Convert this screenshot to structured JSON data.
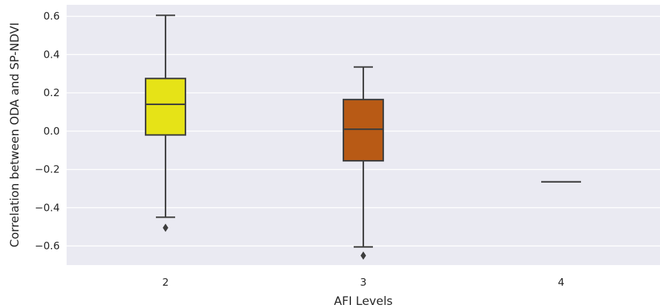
{
  "chart_data": {
    "type": "box",
    "xlabel": "AFI Levels",
    "ylabel": "Correlation between ODA and SP-NDVI",
    "ylim": [
      -0.7,
      0.66
    ],
    "yticks": [
      0.6,
      0.4,
      0.2,
      0.0,
      -0.2,
      -0.4,
      -0.6
    ],
    "ytick_labels": [
      "0.6",
      "0.4",
      "0.2",
      "0.0",
      "−0.2",
      "−0.4",
      "−0.6"
    ],
    "categories": [
      "2",
      "3",
      "4"
    ],
    "grid": true,
    "boxes": [
      {
        "category": "2",
        "whisker_low": -0.45,
        "q1": -0.02,
        "median": 0.14,
        "q3": 0.275,
        "whisker_high": 0.605,
        "outliers": [
          -0.505
        ],
        "color": "#e6e317"
      },
      {
        "category": "3",
        "whisker_low": -0.605,
        "q1": -0.155,
        "median": 0.01,
        "q3": 0.165,
        "whisker_high": 0.335,
        "outliers": [
          -0.65
        ],
        "color": "#b85a15"
      },
      {
        "category": "4",
        "whisker_low": -0.265,
        "q1": -0.265,
        "median": -0.265,
        "q3": -0.265,
        "whisker_high": -0.265,
        "outliers": [],
        "color": "#8b1a0e"
      }
    ],
    "colors": {
      "background": "#eaeaf2",
      "grid": "#ffffff",
      "line": "#3d3d3d"
    }
  }
}
